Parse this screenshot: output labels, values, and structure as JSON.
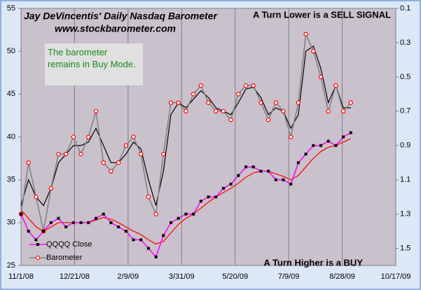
{
  "chart_data": {
    "type": "line",
    "title": "Jay DeVincentis' Daily Nasdaq Barometer",
    "subtitle": "www.stockbarometer.com",
    "annotations": [
      "A Turn Lower is a SELL  SIGNAL",
      "A Turn Higher is a BUY",
      "The barometer remains in Buy Mode."
    ],
    "x": [
      0,
      7,
      14,
      21,
      28,
      35,
      42,
      49,
      56,
      63,
      70,
      77,
      84,
      91,
      98,
      105,
      112,
      119,
      126,
      133,
      140,
      147,
      154,
      161,
      168,
      175,
      182,
      189,
      196,
      203,
      210,
      217,
      224,
      231,
      238,
      245,
      252,
      259,
      266,
      273,
      280,
      287,
      294,
      301,
      308
    ],
    "series": [
      {
        "name": "QQQQ Close",
        "color": "#ff00ff",
        "marker_color": "#000000",
        "marker": "square",
        "values": [
          31,
          29,
          28,
          29,
          30,
          30.5,
          29.5,
          30,
          30,
          30,
          30.5,
          31,
          30,
          29.5,
          29,
          28,
          28,
          27,
          26,
          28.5,
          30,
          30.5,
          31,
          31,
          32.5,
          33,
          33,
          34,
          34.5,
          35.5,
          36.5,
          36.5,
          36,
          36,
          35,
          35,
          34.5,
          37,
          38,
          39,
          39,
          39.5,
          39,
          40,
          40.5
        ]
      },
      {
        "name": "Barometer",
        "color": "#808080",
        "marker_color": "#ff0000",
        "marker": "circle",
        "axis": "y2",
        "values": [
          1.3,
          1.0,
          1.2,
          1.4,
          1.15,
          0.95,
          0.95,
          0.85,
          0.95,
          0.85,
          0.7,
          1.0,
          1.05,
          1.0,
          0.9,
          0.85,
          0.95,
          1.2,
          1.3,
          0.95,
          0.65,
          0.65,
          0.7,
          0.6,
          0.55,
          0.65,
          0.7,
          0.7,
          0.75,
          0.6,
          0.55,
          0.55,
          0.65,
          0.75,
          0.65,
          0.7,
          0.85,
          0.65,
          0.25,
          0.35,
          0.5,
          0.7,
          0.55,
          0.7,
          0.65
        ]
      },
      {
        "color": "#000000",
        "axis": "y2",
        "values": [
          1.25,
          1.1,
          1.2,
          1.25,
          1.15,
          1.0,
          0.95,
          0.9,
          0.9,
          0.88,
          0.8,
          0.9,
          1.0,
          1.0,
          0.95,
          0.88,
          0.92,
          1.1,
          1.25,
          1.05,
          0.72,
          0.65,
          0.68,
          0.63,
          0.58,
          0.62,
          0.68,
          0.7,
          0.72,
          0.65,
          0.57,
          0.56,
          0.62,
          0.72,
          0.68,
          0.7,
          0.8,
          0.72,
          0.35,
          0.32,
          0.45,
          0.65,
          0.55,
          0.68,
          0.68
        ]
      },
      {
        "color": "#ff0000",
        "values": [
          31.5,
          30.5,
          29.5,
          29,
          29.5,
          30,
          30,
          30,
          30,
          30,
          30.3,
          30.6,
          30.4,
          30,
          29.5,
          29,
          28.6,
          28,
          27.5,
          27.8,
          28.8,
          29.8,
          30.5,
          31,
          31.7,
          32.4,
          33,
          33.5,
          34,
          34.6,
          35.3,
          35.8,
          36,
          36,
          35.7,
          35.4,
          35,
          35.5,
          36.5,
          37.5,
          38.3,
          38.8,
          39,
          39.4,
          39.8
        ]
      }
    ],
    "xlim": [
      0,
      350
    ],
    "xticks": [
      {
        "value": 0,
        "label": "11/1/08"
      },
      {
        "value": 50,
        "label": "12/21/08"
      },
      {
        "value": 100,
        "label": "2/9/09"
      },
      {
        "value": 150,
        "label": "3/31/09"
      },
      {
        "value": 200,
        "label": "5/20/09"
      },
      {
        "value": 250,
        "label": "7/9/09"
      },
      {
        "value": 300,
        "label": "8/28/09"
      },
      {
        "value": 350,
        "label": "10/17/09"
      }
    ],
    "ylim": [
      25,
      55
    ],
    "yticks": [
      25,
      30,
      35,
      40,
      45,
      50,
      55
    ],
    "y2lim": [
      1.6,
      0.1
    ],
    "y2ticks": [
      0.1,
      0.3,
      0.5,
      0.7,
      0.9,
      1.1,
      1.3,
      1.5
    ],
    "grid": true,
    "legend": "lower left"
  }
}
